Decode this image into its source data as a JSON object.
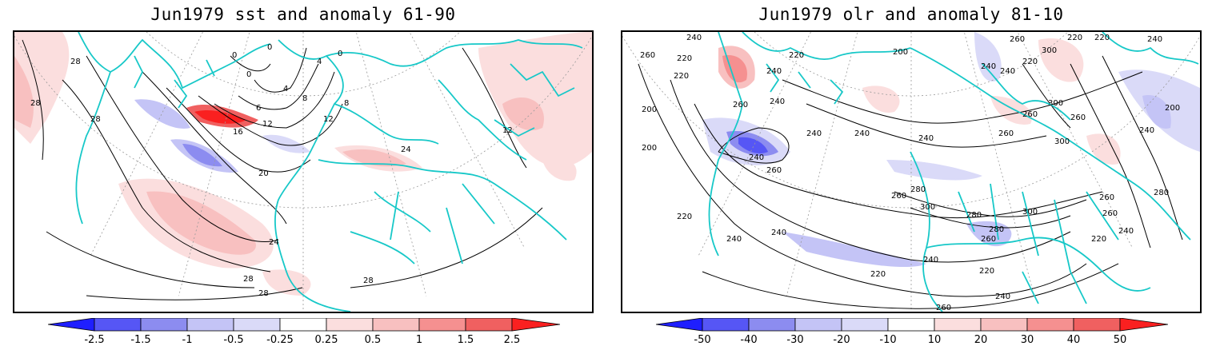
{
  "colors": {
    "coastline": "#17c8c8",
    "contour": "#000000",
    "grid": "#9a9a9a",
    "neg": [
      "#1f1fff",
      "#5656f5",
      "#8c8cf0",
      "#c4c4f6",
      "#dadaf8"
    ],
    "pos": [
      "#fbdede",
      "#f8c0c0",
      "#f59090",
      "#f06060",
      "#fa2020"
    ]
  },
  "panels": [
    {
      "title": "Jun1979 sst and anomaly 61-90",
      "colorbar_labels": [
        "-2.5",
        "-1.5",
        "-1",
        "-0.5",
        "-0.25",
        "0.25",
        "0.5",
        "1",
        "1.5",
        "2.5"
      ],
      "contour_labels": [
        "28",
        "28",
        "28",
        "28",
        "28",
        "28",
        "24",
        "24",
        "20",
        "16",
        "12",
        "12",
        "8",
        "8",
        "6",
        "4",
        "4",
        "0",
        "0",
        "0",
        "0",
        "12"
      ]
    },
    {
      "title": "Jun1979 olr and anomaly 81-10",
      "colorbar_labels": [
        "-50",
        "-40",
        "-30",
        "-20",
        "-10",
        "10",
        "20",
        "30",
        "40",
        "50"
      ],
      "contour_labels": [
        "240",
        "260",
        "220",
        "220",
        "200",
        "200",
        "240",
        "260",
        "240",
        "220",
        "240",
        "240",
        "240",
        "240",
        "260",
        "280",
        "300",
        "300",
        "280",
        "280",
        "260",
        "240",
        "220",
        "220",
        "240",
        "260",
        "240",
        "260",
        "220",
        "240",
        "260",
        "200",
        "240",
        "260",
        "300",
        "300",
        "260",
        "240",
        "220",
        "240",
        "220",
        "220",
        "260",
        "280",
        "300",
        "260",
        "220",
        "240",
        "260",
        "200",
        "240"
      ]
    }
  ]
}
